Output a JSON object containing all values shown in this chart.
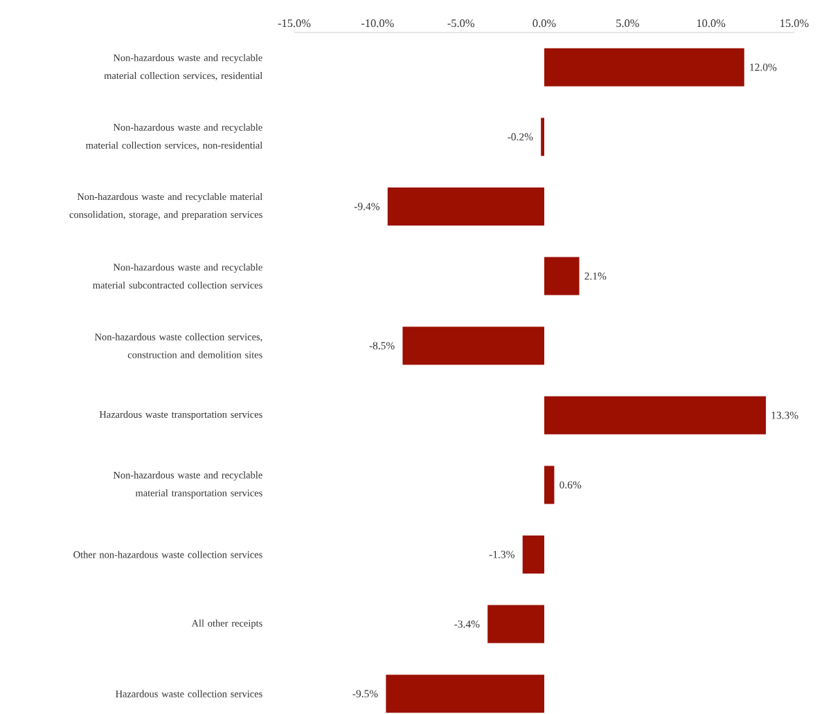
{
  "chart_data": {
    "type": "bar",
    "orientation": "horizontal",
    "color": "#9b1000",
    "categories": [
      "Non-hazardous waste and recyclable material collection services, residential",
      "Non-hazardous waste and recyclable material collection services, non-residential",
      "Non-hazardous waste and recyclable material consolidation, storage, and preparation services",
      "Non-hazardous waste and recyclable material subcontracted collection services",
      "Non-hazardous waste collection services, construction and demolition sites",
      "Hazardous waste transportation services",
      "Non-hazardous waste and recyclable material transportation services",
      "Other non-hazardous waste collection services",
      "All other receipts",
      "Hazardous waste collection services"
    ],
    "values": [
      12.0,
      -0.2,
      -9.4,
      2.1,
      -8.5,
      13.3,
      0.6,
      -1.3,
      -3.4,
      -9.5
    ],
    "value_labels": [
      "12.0%",
      "-0.2%",
      "-9.4%",
      "2.1%",
      "-8.5%",
      "13.3%",
      "0.6%",
      "-1.3%",
      "-3.4%",
      "-9.5%"
    ],
    "xlim": [
      -15,
      15
    ],
    "xticks": [
      {
        "value": -15,
        "label": "-15.0%"
      },
      {
        "value": -10,
        "label": "-10.0%"
      },
      {
        "value": -5,
        "label": "-5.0%"
      },
      {
        "value": 0,
        "label": "0.0%"
      },
      {
        "value": 5,
        "label": "5.0%"
      },
      {
        "value": 10,
        "label": "10.0%"
      },
      {
        "value": 15,
        "label": "15.0%"
      }
    ]
  }
}
